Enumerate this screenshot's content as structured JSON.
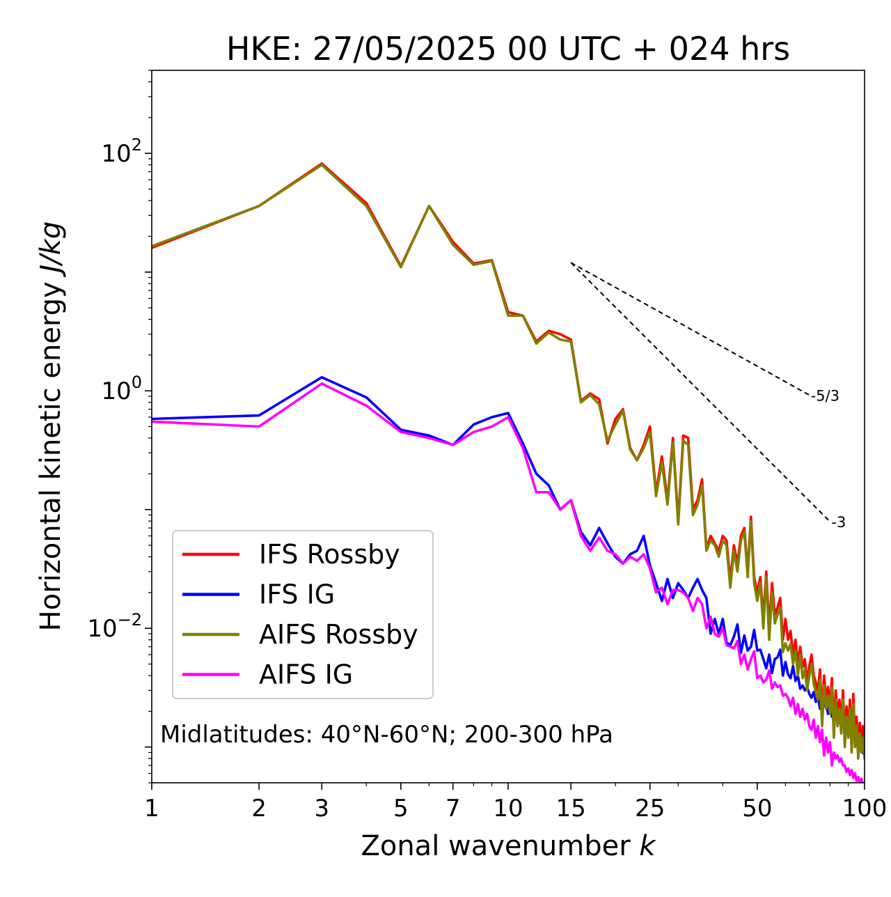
{
  "chart_data": {
    "type": "line",
    "title": "HKE: 27/05/2025 00 UTC + 024 hrs",
    "xlabel_text": "Zonal wavenumber ",
    "xlabel_var": "k",
    "ylabel_text": "Horizontal kinetic energy ",
    "ylabel_unit": "J/kg",
    "xscale": "log",
    "yscale": "log",
    "xlim": [
      1,
      100
    ],
    "ylim": [
      0.0005,
      500
    ],
    "xticks": [
      1,
      2,
      3,
      5,
      7,
      10,
      15,
      25,
      50,
      100
    ],
    "xtick_labels": [
      "1",
      "2",
      "3",
      "5",
      "7",
      "10",
      "15",
      "25",
      "50",
      "100"
    ],
    "yticks": [
      {
        "value": 100,
        "base": "10",
        "exp": "2"
      },
      {
        "value": 1,
        "base": "10",
        "exp": "0"
      },
      {
        "value": 0.01,
        "base": "10",
        "exp": "−2"
      }
    ],
    "legend_location": "lower-left",
    "annotation": "Midlatitudes: 40°N-60°N; 200-300 hPa",
    "reference_slopes": [
      {
        "label": "-5/3",
        "slope": -1.6667,
        "x_start": 15,
        "y_start": 12,
        "x_end": 70
      },
      {
        "label": "-3",
        "slope": -3,
        "x_start": 15,
        "y_start": 12,
        "x_end": 80
      }
    ],
    "series": [
      {
        "name": "IFS Rossby",
        "color": "#ff0000",
        "x": [
          1,
          2,
          3,
          4,
          5,
          6,
          7,
          8,
          9,
          10,
          11,
          12,
          13,
          14,
          15,
          16,
          17,
          18,
          19,
          20,
          21,
          22,
          23,
          24,
          25,
          26,
          27,
          28,
          29,
          30,
          31,
          32,
          33,
          34,
          35,
          36,
          37,
          38,
          39,
          40,
          41,
          42,
          43,
          44,
          45,
          46,
          47,
          48,
          49,
          50,
          51,
          52,
          53,
          54,
          55,
          56,
          57,
          58,
          59,
          60,
          61,
          62,
          63,
          64,
          65,
          66,
          67,
          68,
          69,
          70,
          71,
          72,
          73,
          74,
          75,
          76,
          77,
          78,
          79,
          80,
          81,
          82,
          83,
          84,
          85,
          86,
          87,
          88,
          89,
          90,
          91,
          92,
          93,
          94,
          95,
          96,
          97,
          98,
          99,
          100
        ],
        "y": [
          16.0,
          36.0,
          82.0,
          38.0,
          11.2,
          36.0,
          18.0,
          11.8,
          12.6,
          4.6,
          4.3,
          2.6,
          3.2,
          3.0,
          2.7,
          0.82,
          0.95,
          0.85,
          0.36,
          0.58,
          0.7,
          0.33,
          0.26,
          0.35,
          0.5,
          0.14,
          0.28,
          0.12,
          0.4,
          0.08,
          0.42,
          0.4,
          0.1,
          0.12,
          0.18,
          0.047,
          0.06,
          0.052,
          0.045,
          0.06,
          0.055,
          0.025,
          0.05,
          0.035,
          0.06,
          0.07,
          0.03,
          0.087,
          0.027,
          0.02,
          0.027,
          0.012,
          0.03,
          0.01,
          0.024,
          0.013,
          0.015,
          0.018,
          0.008,
          0.012,
          0.008,
          0.0095,
          0.006,
          0.008,
          0.005,
          0.007,
          0.0047,
          0.0055,
          0.0035,
          0.0048,
          0.006,
          0.004,
          0.0035,
          0.003,
          0.0045,
          0.0018,
          0.004,
          0.0025,
          0.0032,
          0.0022,
          0.0038,
          0.0014,
          0.003,
          0.0018,
          0.0025,
          0.0015,
          0.003,
          0.0012,
          0.0022,
          0.0014,
          0.0025,
          0.001,
          0.0028,
          0.0012,
          0.0018,
          0.0009,
          0.0016,
          0.0011,
          0.0015,
          0.0009
        ]
      },
      {
        "name": "IFS IG",
        "color": "#0000ff",
        "x": [
          1,
          2,
          3,
          4,
          5,
          6,
          7,
          8,
          9,
          10,
          11,
          12,
          13,
          14,
          15,
          16,
          17,
          18,
          19,
          20,
          21,
          22,
          23,
          24,
          25,
          26,
          27,
          28,
          29,
          30,
          31,
          32,
          33,
          34,
          35,
          36,
          37,
          38,
          39,
          40,
          41,
          42,
          43,
          44,
          45,
          46,
          47,
          48,
          49,
          50,
          51,
          52,
          53,
          54,
          55,
          56,
          57,
          58,
          59,
          60,
          61,
          62,
          63,
          64,
          65,
          66,
          67,
          68,
          69,
          70,
          71,
          72,
          73,
          74,
          75,
          76,
          77,
          78,
          79,
          80,
          81,
          82,
          83,
          84,
          85,
          86,
          87,
          88,
          89,
          90,
          91,
          92,
          93,
          94,
          95,
          96,
          97,
          98,
          99,
          100
        ],
        "y": [
          0.58,
          0.62,
          1.3,
          0.88,
          0.47,
          0.42,
          0.35,
          0.52,
          0.6,
          0.65,
          0.36,
          0.2,
          0.16,
          0.1,
          0.12,
          0.065,
          0.05,
          0.07,
          0.052,
          0.04,
          0.035,
          0.042,
          0.045,
          0.06,
          0.034,
          0.024,
          0.017,
          0.026,
          0.018,
          0.024,
          0.021,
          0.018,
          0.022,
          0.026,
          0.021,
          0.018,
          0.009,
          0.012,
          0.009,
          0.012,
          0.0076,
          0.0072,
          0.0085,
          0.0108,
          0.0062,
          0.0087,
          0.0065,
          0.007,
          0.0097,
          0.0065,
          0.0066,
          0.0055,
          0.0046,
          0.006,
          0.0042,
          0.0055,
          0.0057,
          0.0066,
          0.004,
          0.0052,
          0.0041,
          0.0038,
          0.0048,
          0.0036,
          0.004,
          0.0031,
          0.0033,
          0.003,
          0.0032,
          0.0028,
          0.0026,
          0.0029,
          0.0024,
          0.0027,
          0.0021,
          0.0025,
          0.0022,
          0.0023,
          0.0019,
          0.0024,
          0.0018,
          0.0021,
          0.0017,
          0.0019,
          0.0016,
          0.0018,
          0.0015,
          0.0017,
          0.0014,
          0.0016,
          0.0013,
          0.0015,
          0.0012,
          0.0014,
          0.0011,
          0.0012,
          0.001,
          0.0011,
          0.0009,
          0.00085
        ]
      },
      {
        "name": "AIFS Rossby",
        "color": "#808000",
        "x": [
          1,
          2,
          3,
          4,
          5,
          6,
          7,
          8,
          9,
          10,
          11,
          12,
          13,
          14,
          15,
          16,
          17,
          18,
          19,
          20,
          21,
          22,
          23,
          24,
          25,
          26,
          27,
          28,
          29,
          30,
          31,
          32,
          33,
          34,
          35,
          36,
          37,
          38,
          39,
          40,
          41,
          42,
          43,
          44,
          45,
          46,
          47,
          48,
          49,
          50,
          51,
          52,
          53,
          54,
          55,
          56,
          57,
          58,
          59,
          60,
          61,
          62,
          63,
          64,
          65,
          66,
          67,
          68,
          69,
          70,
          71,
          72,
          73,
          74,
          75,
          76,
          77,
          78,
          79,
          80,
          81,
          82,
          83,
          84,
          85,
          86,
          87,
          88,
          89,
          90,
          91,
          92,
          93,
          94,
          95,
          96,
          97,
          98,
          99,
          100
        ],
        "y": [
          16.5,
          36.0,
          80.0,
          36.0,
          11.0,
          36.0,
          17.0,
          11.5,
          12.4,
          4.3,
          4.3,
          2.5,
          3.1,
          2.7,
          2.6,
          0.8,
          0.92,
          0.77,
          0.38,
          0.52,
          0.68,
          0.32,
          0.26,
          0.33,
          0.45,
          0.13,
          0.25,
          0.11,
          0.37,
          0.075,
          0.38,
          0.35,
          0.09,
          0.11,
          0.16,
          0.045,
          0.055,
          0.05,
          0.04,
          0.055,
          0.05,
          0.022,
          0.045,
          0.03,
          0.055,
          0.065,
          0.027,
          0.08,
          0.024,
          0.017,
          0.024,
          0.01,
          0.027,
          0.008,
          0.02,
          0.011,
          0.013,
          0.015,
          0.0063,
          0.0075,
          0.0065,
          0.0074,
          0.005,
          0.0065,
          0.004,
          0.006,
          0.0038,
          0.0045,
          0.003,
          0.004,
          0.005,
          0.0034,
          0.0029,
          0.0025,
          0.0037,
          0.0015,
          0.0033,
          0.0021,
          0.0027,
          0.0019,
          0.0032,
          0.0012,
          0.0025,
          0.0015,
          0.0021,
          0.0013,
          0.0025,
          0.001,
          0.0018,
          0.0012,
          0.0021,
          0.0009,
          0.0023,
          0.001,
          0.0015,
          0.0008,
          0.0013,
          0.0009,
          0.0012,
          0.0008
        ]
      },
      {
        "name": "AIFS IG",
        "color": "#ff00ff",
        "x": [
          1,
          2,
          3,
          4,
          5,
          6,
          7,
          8,
          9,
          10,
          11,
          12,
          13,
          14,
          15,
          16,
          17,
          18,
          19,
          20,
          21,
          22,
          23,
          24,
          25,
          26,
          27,
          28,
          29,
          30,
          31,
          32,
          33,
          34,
          35,
          36,
          37,
          38,
          39,
          40,
          41,
          42,
          43,
          44,
          45,
          46,
          47,
          48,
          49,
          50,
          51,
          52,
          53,
          54,
          55,
          56,
          57,
          58,
          59,
          60,
          61,
          62,
          63,
          64,
          65,
          66,
          67,
          68,
          69,
          70,
          71,
          72,
          73,
          74,
          75,
          76,
          77,
          78,
          79,
          80,
          81,
          82,
          83,
          84,
          85,
          86,
          87,
          88,
          89,
          90,
          91,
          92,
          93,
          94,
          95,
          96,
          97,
          98,
          99,
          100
        ],
        "y": [
          0.55,
          0.5,
          1.15,
          0.75,
          0.45,
          0.4,
          0.35,
          0.45,
          0.5,
          0.6,
          0.33,
          0.14,
          0.14,
          0.1,
          0.12,
          0.06,
          0.045,
          0.058,
          0.045,
          0.042,
          0.035,
          0.04,
          0.037,
          0.042,
          0.032,
          0.02,
          0.022,
          0.016,
          0.021,
          0.021,
          0.02,
          0.018,
          0.014,
          0.018,
          0.016,
          0.01,
          0.0125,
          0.009,
          0.0085,
          0.01,
          0.0072,
          0.007,
          0.0068,
          0.0078,
          0.005,
          0.006,
          0.0045,
          0.0055,
          0.0064,
          0.0038,
          0.004,
          0.0035,
          0.0037,
          0.0044,
          0.0031,
          0.0035,
          0.0032,
          0.0033,
          0.0027,
          0.0028,
          0.0026,
          0.0022,
          0.0026,
          0.0019,
          0.0023,
          0.0018,
          0.0021,
          0.0017,
          0.0019,
          0.0015,
          0.0014,
          0.0017,
          0.0012,
          0.0015,
          0.0011,
          0.0014,
          0.00085,
          0.0012,
          0.0009,
          0.0011,
          0.0007,
          0.0009,
          0.0008,
          0.00085,
          0.00075,
          0.0008,
          0.0007,
          0.0007,
          0.00062,
          0.00066,
          0.00058,
          0.00064,
          0.00055,
          0.0006,
          0.00052,
          0.00056,
          0.0005,
          0.00054,
          0.00048,
          0.00046
        ]
      }
    ]
  }
}
